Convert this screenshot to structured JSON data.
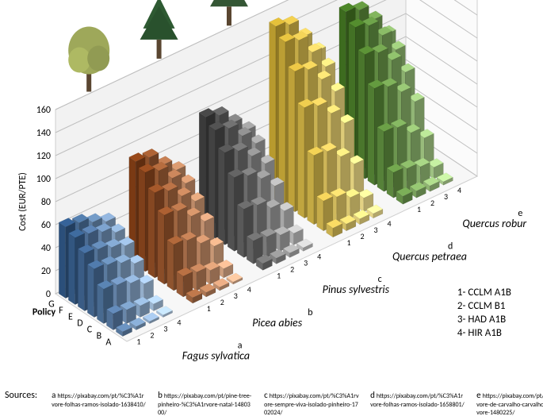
{
  "chart": {
    "type": "3d-bar-grid",
    "ylabel": "Cost (EUR/PTE)",
    "ylim": [
      0,
      160
    ],
    "ytick_step": 20,
    "yticks": [
      0,
      20,
      40,
      60,
      80,
      100,
      120,
      140,
      160
    ],
    "label_fontsize": 12,
    "background_color": "#ffffff",
    "grid_color": "#bfbfbf",
    "policy_label": "Policy",
    "policies": [
      "G",
      "F",
      "E",
      "D",
      "C",
      "B",
      "A"
    ],
    "scenario_numbers": [
      "1",
      "2",
      "3",
      "4"
    ],
    "species": [
      {
        "latin": "Fagus sylvatica",
        "tag": "a",
        "color_base": "#2b4f7a",
        "color_light": "#a9c1da",
        "tree_color": "#9ea85a"
      },
      {
        "latin": "Picea abies",
        "tag": "b",
        "color_base": "#7a3a14",
        "color_light": "#d6a989",
        "tree_color": "#2e5a32"
      },
      {
        "latin": "Pinus sylvestris",
        "tag": "c",
        "color_base": "#3a3a3a",
        "color_light": "#bdbdbd",
        "tree_color": "#3a5f3a"
      },
      {
        "latin": "Quercus petraea",
        "tag": "d",
        "color_base": "#b89a2e",
        "color_light": "#e8d98e",
        "tree_color": "#6b7a2e"
      },
      {
        "latin": "Quercus robur",
        "tag": "e",
        "color_base": "#3d6b1f",
        "color_light": "#aacb8e",
        "tree_color": "#2e5a1f"
      }
    ],
    "legend": {
      "1": "CCLM A1B",
      "2": "CCLM B1",
      "3": "HAD A1B",
      "4": "HIR A1B"
    },
    "data": {
      "Fagus sylvatica": {
        "G": [
          62,
          60,
          55,
          50
        ],
        "F": [
          58,
          56,
          52,
          46
        ],
        "E": [
          50,
          48,
          44,
          40
        ],
        "D": [
          42,
          40,
          36,
          30
        ],
        "C": [
          30,
          28,
          24,
          18
        ],
        "B": [
          14,
          12,
          10,
          6
        ],
        "A": [
          4,
          3,
          2,
          2
        ]
      },
      "Picea abies": {
        "G": [
          90,
          88,
          76,
          66
        ],
        "F": [
          86,
          82,
          70,
          60
        ],
        "E": [
          74,
          70,
          60,
          50
        ],
        "D": [
          60,
          58,
          48,
          38
        ],
        "C": [
          40,
          38,
          30,
          22
        ],
        "B": [
          18,
          16,
          12,
          8
        ],
        "A": [
          5,
          4,
          3,
          2
        ]
      },
      "Pinus sylvestris": {
        "G": [
          100,
          96,
          84,
          72
        ],
        "F": [
          94,
          90,
          78,
          66
        ],
        "E": [
          80,
          76,
          66,
          54
        ],
        "D": [
          64,
          60,
          52,
          40
        ],
        "C": [
          42,
          40,
          32,
          24
        ],
        "B": [
          20,
          18,
          14,
          10
        ],
        "A": [
          6,
          5,
          4,
          3
        ]
      },
      "Quercus petraea": {
        "G": [
          150,
          146,
          130,
          112
        ],
        "F": [
          142,
          138,
          122,
          104
        ],
        "E": [
          122,
          118,
          104,
          88
        ],
        "D": [
          96,
          92,
          80,
          66
        ],
        "C": [
          60,
          58,
          48,
          36
        ],
        "B": [
          26,
          24,
          18,
          12
        ],
        "A": [
          8,
          6,
          5,
          4
        ]
      },
      "Quercus robur": {
        "G": [
          134,
          130,
          116,
          98
        ],
        "F": [
          126,
          122,
          108,
          90
        ],
        "E": [
          108,
          104,
          92,
          76
        ],
        "D": [
          84,
          80,
          70,
          56
        ],
        "C": [
          52,
          50,
          40,
          30
        ],
        "B": [
          22,
          20,
          16,
          10
        ],
        "A": [
          7,
          6,
          5,
          3
        ]
      }
    }
  },
  "sources_label": "Sources:",
  "sources": [
    {
      "tag": "a",
      "url": "https://pixabay.com/pt/%C3%A1rvore-folhas-ramos-isolado-1638410/"
    },
    {
      "tag": "b",
      "url": "https://pixabay.com/pt/pine-tree-pinheiro-%C3%A1rvore-natal-1480300/"
    },
    {
      "tag": "c",
      "url": "https://pixabay.com/pt/%C3%A1rvore-sempre-viva-isolado-pinheiro-1702024/"
    },
    {
      "tag": "d",
      "url": "https://pixabay.com/pt/%C3%A1rvore-folhas-ramos-isolado-1658801/"
    },
    {
      "tag": "e",
      "url": "https://pixabay.com/pt/%C3%A1rvore-de-carvalho-carvalho-%C3%A1rvore-1480225/"
    }
  ]
}
